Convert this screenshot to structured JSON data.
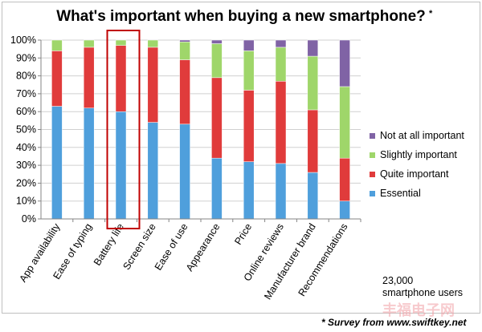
{
  "chart_data": {
    "type": "bar",
    "stacked": true,
    "title": "What's important when buying a new smartphone?",
    "title_mark": "*",
    "categories": [
      "App availability",
      "Ease of typing",
      "Battery life",
      "Screen size",
      "Ease of use",
      "Appearance",
      "Price",
      "Online reviews",
      "Manufacturer brand",
      "Recommendations"
    ],
    "series": [
      {
        "name": "Essential",
        "color": "#4f9fdc",
        "values": [
          63,
          62,
          60,
          54,
          53,
          34,
          32,
          31,
          26,
          10
        ]
      },
      {
        "name": "Quite important",
        "color": "#e03b3b",
        "values": [
          31,
          34,
          37,
          42,
          36,
          45,
          40,
          46,
          35,
          24
        ]
      },
      {
        "name": "Slightly important",
        "color": "#9fd66a",
        "values": [
          6,
          4,
          3,
          4,
          10,
          19,
          22,
          19,
          30,
          40
        ]
      },
      {
        "name": "Not at all important",
        "color": "#8063a5",
        "values": [
          0,
          0,
          0,
          0,
          1,
          2,
          6,
          4,
          9,
          26
        ]
      }
    ],
    "legend_order": [
      "Not at all important",
      "Slightly important",
      "Quite important",
      "Essential"
    ],
    "legend_position": "right",
    "ylim": [
      0,
      100
    ],
    "yticks": [
      "0%",
      "10%",
      "20%",
      "30%",
      "40%",
      "50%",
      "60%",
      "70%",
      "80%",
      "90%",
      "100%"
    ],
    "highlighted_category": "Battery life",
    "highlight_color": "#c00000",
    "annotation": "23,000 smartphone users",
    "source_note": "* Survey from www.swiftkey.net"
  },
  "watermark_text": "丰福电子网"
}
